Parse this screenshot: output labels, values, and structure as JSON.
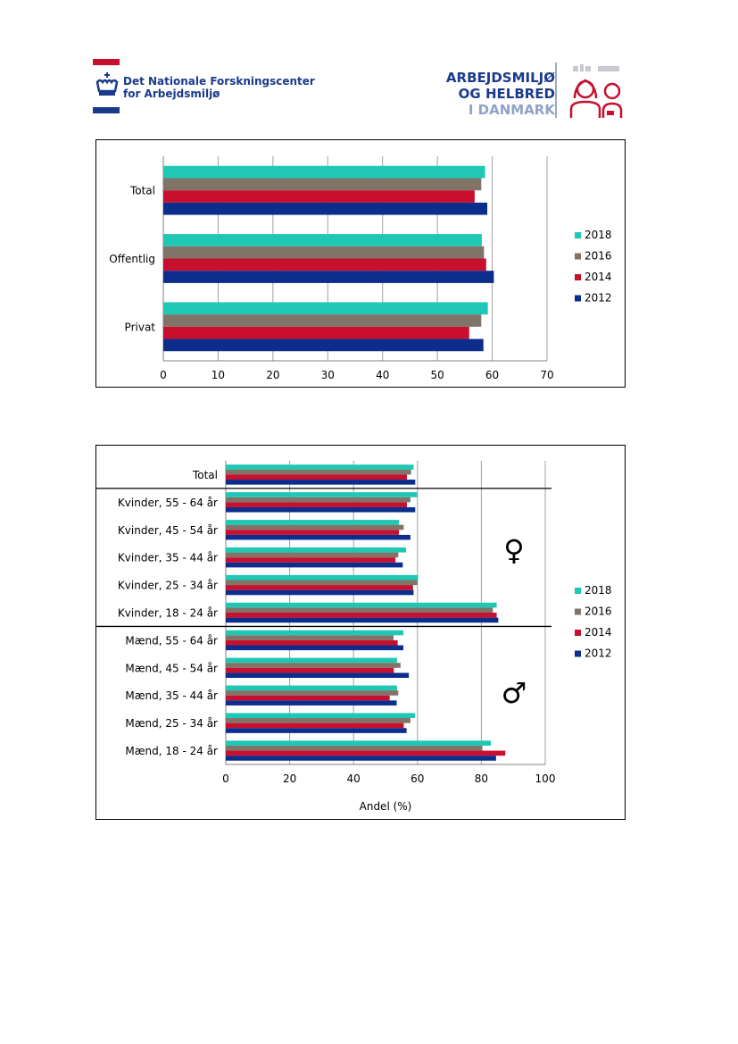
{
  "header": {
    "institute_line1": "Det Nationale Forskningscenter",
    "institute_line2": "for Arbejdsmiljø",
    "brand_line1": "ARBEJDSMILJØ",
    "brand_line2": "OG HELBRED",
    "brand_line3": "I DANMARK"
  },
  "colors": {
    "2018": "#1ec8b4",
    "2016": "#807368",
    "2014": "#c8102e",
    "2012": "#0d2d8c",
    "flag_red": "#c8102e",
    "flag_blue": "#1a3a8c"
  },
  "chart_data": [
    {
      "type": "bar",
      "orientation": "horizontal",
      "categories": [
        "Total",
        "Offentlig",
        "Privat"
      ],
      "series": [
        {
          "name": "2018",
          "values": [
            58.7,
            58.1,
            59.2
          ]
        },
        {
          "name": "2016",
          "values": [
            58.0,
            58.5,
            58.0
          ]
        },
        {
          "name": "2014",
          "values": [
            56.8,
            58.9,
            55.8
          ]
        },
        {
          "name": "2012",
          "values": [
            59.1,
            60.3,
            58.4
          ]
        }
      ],
      "xlim": [
        0,
        70
      ],
      "xticks": [
        "0",
        "10",
        "20",
        "30",
        "40",
        "50",
        "60",
        "70"
      ],
      "xlabel": "",
      "ylabel": "",
      "legend": [
        "2018",
        "2016",
        "2014",
        "2012"
      ],
      "grid": true
    },
    {
      "type": "bar",
      "orientation": "horizontal",
      "categories": [
        "Total",
        "Kvinder, 55 - 64 år",
        "Kvinder, 45 - 54 år",
        "Kvinder, 35 - 44 år",
        "Kvinder, 25 - 34 år",
        "Kvinder, 18 - 24 år",
        "Mænd, 55 - 64 år",
        "Mænd, 45 - 54 år",
        "Mænd, 35 - 44 år",
        "Mænd, 25 - 34 år",
        "Mænd, 18 - 24 år"
      ],
      "series": [
        {
          "name": "2018",
          "values": [
            58.8,
            59.9,
            54.2,
            56.4,
            60.2,
            84.8,
            55.6,
            53.6,
            53.6,
            59.2,
            83.0
          ]
        },
        {
          "name": "2016",
          "values": [
            58.0,
            57.8,
            55.7,
            54.0,
            60.0,
            83.6,
            52.5,
            54.7,
            54.0,
            57.8,
            80.3
          ]
        },
        {
          "name": "2014",
          "values": [
            56.7,
            56.7,
            54.2,
            53.1,
            58.6,
            84.8,
            53.8,
            52.6,
            51.3,
            55.7,
            87.5
          ]
        },
        {
          "name": "2012",
          "values": [
            59.3,
            59.3,
            57.8,
            55.4,
            58.8,
            85.3,
            55.6,
            57.3,
            53.5,
            56.6,
            84.6
          ]
        }
      ],
      "xlim": [
        0,
        100
      ],
      "xticks": [
        "0",
        "20",
        "40",
        "60",
        "80",
        "100"
      ],
      "xlabel": "Andel (%)",
      "ylabel": "",
      "legend": [
        "2018",
        "2016",
        "2014",
        "2012"
      ],
      "symbols": {
        "female": "♀",
        "male": "♂"
      },
      "grid": true
    }
  ]
}
